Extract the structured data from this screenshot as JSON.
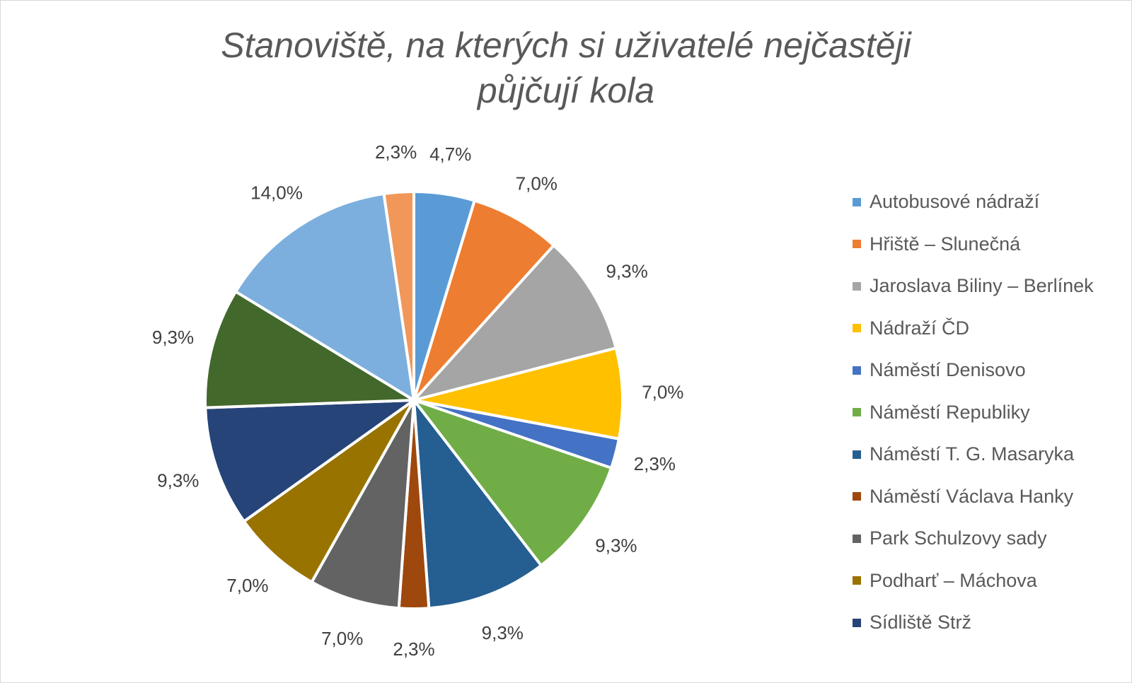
{
  "chart_data": {
    "type": "pie",
    "title": "Stanoviště, na kterých si uživatelé nejčastěji půjčují kola",
    "title_lines": [
      "Stanoviště, na kterých si uživatelé nejčastěji",
      "půjčují kola"
    ],
    "legend_position": "right",
    "slices": [
      {
        "label": "Autobusové nádraží",
        "value": 4.7,
        "value_label": "4,7%",
        "color": "#5B9BD5"
      },
      {
        "label": "Hřiště – Slunečná",
        "value": 7.0,
        "value_label": "7,0%",
        "color": "#ED7D31"
      },
      {
        "label": "Jaroslava Biliny – Berlínek",
        "value": 9.3,
        "value_label": "9,3%",
        "color": "#A5A5A5"
      },
      {
        "label": "Nádraží ČD",
        "value": 7.0,
        "value_label": "7,0%",
        "color": "#FFC000"
      },
      {
        "label": "Náměstí Denisovo",
        "value": 2.3,
        "value_label": "2,3%",
        "color": "#4472C4"
      },
      {
        "label": "Náměstí Republiky",
        "value": 9.3,
        "value_label": "9,3%",
        "color": "#70AD47"
      },
      {
        "label": "Náměstí T. G. Masaryka",
        "value": 9.3,
        "value_label": "9,3%",
        "color": "#255E91"
      },
      {
        "label": "Náměstí Václava Hanky",
        "value": 2.3,
        "value_label": "2,3%",
        "color": "#9E480E"
      },
      {
        "label": "Park Schulzovy sady",
        "value": 7.0,
        "value_label": "7,0%",
        "color": "#636363"
      },
      {
        "label": "Podharť – Máchova",
        "value": 7.0,
        "value_label": "7,0%",
        "color": "#997300"
      },
      {
        "label": "Sídliště Strž",
        "value": 9.3,
        "value_label": "9,3%",
        "color": "#264478"
      },
      {
        "label": "",
        "value": 9.3,
        "value_label": "9,3%",
        "color": "#43682B"
      },
      {
        "label": "",
        "value": 14.0,
        "value_label": "14,0%",
        "color": "#7CAFDD"
      },
      {
        "label": "",
        "value": 2.3,
        "value_label": "2,3%",
        "color": "#F1975A"
      }
    ]
  }
}
